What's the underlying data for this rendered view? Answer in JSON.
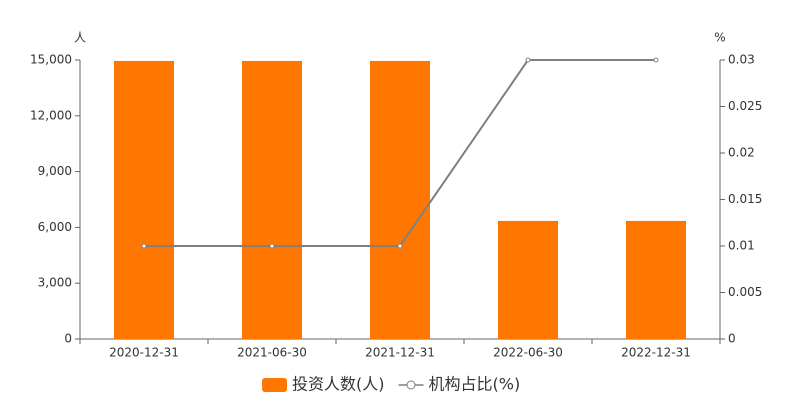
{
  "chart_data": {
    "type": "bar",
    "y_label": "人",
    "y2_label": "%",
    "categories": [
      "2020-12-31",
      "2021-06-30",
      "2021-12-31",
      "2022-06-30",
      "2022-12-31"
    ],
    "series": [
      {
        "name": "投资人数(人)",
        "type": "bar",
        "color": "#ff7700",
        "values": [
          14950,
          14950,
          14950,
          6350,
          6350
        ]
      },
      {
        "name": "机构占比(%)",
        "type": "line",
        "axis": "y2",
        "color": "#808080",
        "values": [
          0.01,
          0.01,
          0.01,
          0.03,
          0.03
        ]
      }
    ],
    "ylim": [
      0,
      15000
    ],
    "yticks": [
      0,
      {
        "value": 3000,
        "label": "3,000"
      },
      {
        "value": 6000,
        "label": "6,000"
      },
      {
        "value": 9000,
        "label": "9,000"
      },
      {
        "value": 12000,
        "label": "12,000"
      },
      {
        "value": 15000,
        "label": "15,000"
      }
    ],
    "y2lim": [
      0,
      0.03
    ],
    "y2ticks": [
      0,
      0.005,
      0.01,
      0.015,
      0.02,
      0.025,
      0.03
    ]
  }
}
